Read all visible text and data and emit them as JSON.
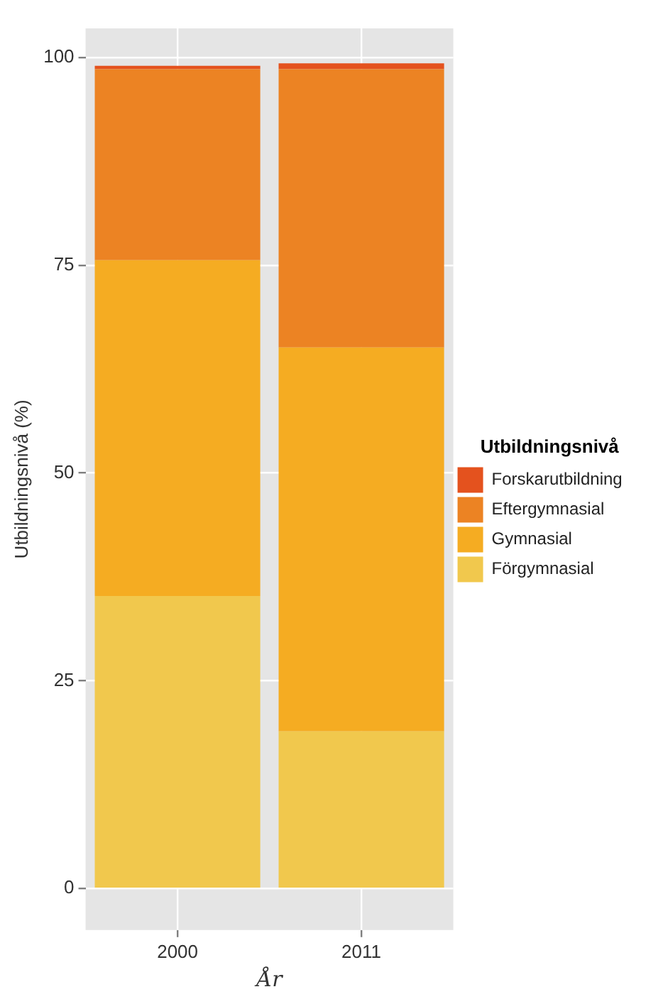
{
  "chart_data": {
    "type": "bar",
    "stacked": true,
    "xlabel": "År",
    "ylabel": "Utbildningsnivå (%)",
    "legend_title": "Utbildningsnivå",
    "legend": "right",
    "grid": true,
    "categories": [
      "2000",
      "2011"
    ],
    "ylim": [
      -5,
      103.5
    ],
    "yticks": [
      0,
      25,
      50,
      75,
      100
    ],
    "series": [
      {
        "name": "Förgymnasial",
        "color": "#f1c84d",
        "values": [
          35.2,
          18.9
        ]
      },
      {
        "name": "Gymnasial",
        "color": "#f5ac22",
        "values": [
          40.4,
          46.2
        ]
      },
      {
        "name": "Eftergymnasial",
        "color": "#ec8323",
        "values": [
          23.0,
          33.5
        ]
      },
      {
        "name": "Forskarutbildning",
        "color": "#e4521e",
        "values": [
          0.4,
          0.7
        ]
      }
    ]
  }
}
